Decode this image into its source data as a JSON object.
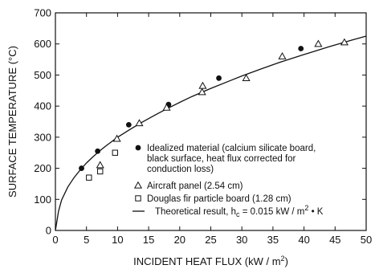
{
  "chart_data": {
    "type": "scatter",
    "xlabel": "INCIDENT HEAT FLUX (kW / m²)",
    "ylabel": "SURFACE TEMPERATURE (°C)",
    "xlim": [
      0,
      50
    ],
    "ylim": [
      0,
      700
    ],
    "x_ticks": [
      "0",
      "5",
      "10",
      "15",
      "20",
      "25",
      "30",
      "35",
      "40",
      "45",
      "50"
    ],
    "y_ticks": [
      "0",
      "100",
      "200",
      "300",
      "400",
      "500",
      "600",
      "700"
    ],
    "grid": false,
    "legend_placement": "center-right",
    "series": [
      {
        "name": "Idealized material (calcium silicate board, black surface, heat flux corrected for conduction loss)",
        "legend_lines": [
          "Idealized material (calcium silicate board,",
          "black surface, heat flux corrected for",
          "conduction loss)"
        ],
        "marker": "filled-circle",
        "points": [
          [
            4.2,
            200
          ],
          [
            6.8,
            255
          ],
          [
            11.8,
            340
          ],
          [
            18.2,
            405
          ],
          [
            26.3,
            490
          ],
          [
            39.5,
            585
          ]
        ]
      },
      {
        "name": "Aircraft panel (2.54 cm)",
        "legend_lines": [
          "Aircraft panel (2.54 cm)"
        ],
        "marker": "open-triangle",
        "points": [
          [
            7.2,
            210
          ],
          [
            9.9,
            295
          ],
          [
            13.5,
            345
          ],
          [
            17.9,
            395
          ],
          [
            23.6,
            445
          ],
          [
            23.7,
            465
          ],
          [
            30.7,
            490
          ],
          [
            36.5,
            560
          ],
          [
            42.3,
            600
          ],
          [
            46.5,
            605
          ]
        ]
      },
      {
        "name": "Douglas fir particle board (1.28 cm)",
        "legend_lines": [
          "Douglas fir particle board (1.28 cm)"
        ],
        "marker": "open-square",
        "points": [
          [
            5.4,
            170
          ],
          [
            7.2,
            190
          ],
          [
            9.6,
            250
          ]
        ]
      },
      {
        "name": "Theoretical result, h_c = 0.015 kW / m²·K",
        "legend_lines": [
          "Theoretical result, h",
          "c",
          " = 0.015 kW / m",
          "2",
          " • K"
        ],
        "marker": "line",
        "curve": [
          [
            0,
            0
          ],
          [
            0.5,
            62
          ],
          [
            1,
            98
          ],
          [
            2,
            140
          ],
          [
            3,
            170
          ],
          [
            4,
            195
          ],
          [
            5,
            217
          ],
          [
            6,
            236
          ],
          [
            7,
            254
          ],
          [
            8,
            270
          ],
          [
            10,
            300
          ],
          [
            12,
            325
          ],
          [
            14,
            349
          ],
          [
            16,
            371
          ],
          [
            18,
            392
          ],
          [
            20,
            412
          ],
          [
            22,
            431
          ],
          [
            25,
            457
          ],
          [
            28,
            481
          ],
          [
            30,
            497
          ],
          [
            33,
            519
          ],
          [
            36,
            540
          ],
          [
            40,
            566
          ],
          [
            44,
            591
          ],
          [
            48,
            614
          ],
          [
            50,
            625
          ]
        ]
      }
    ]
  }
}
